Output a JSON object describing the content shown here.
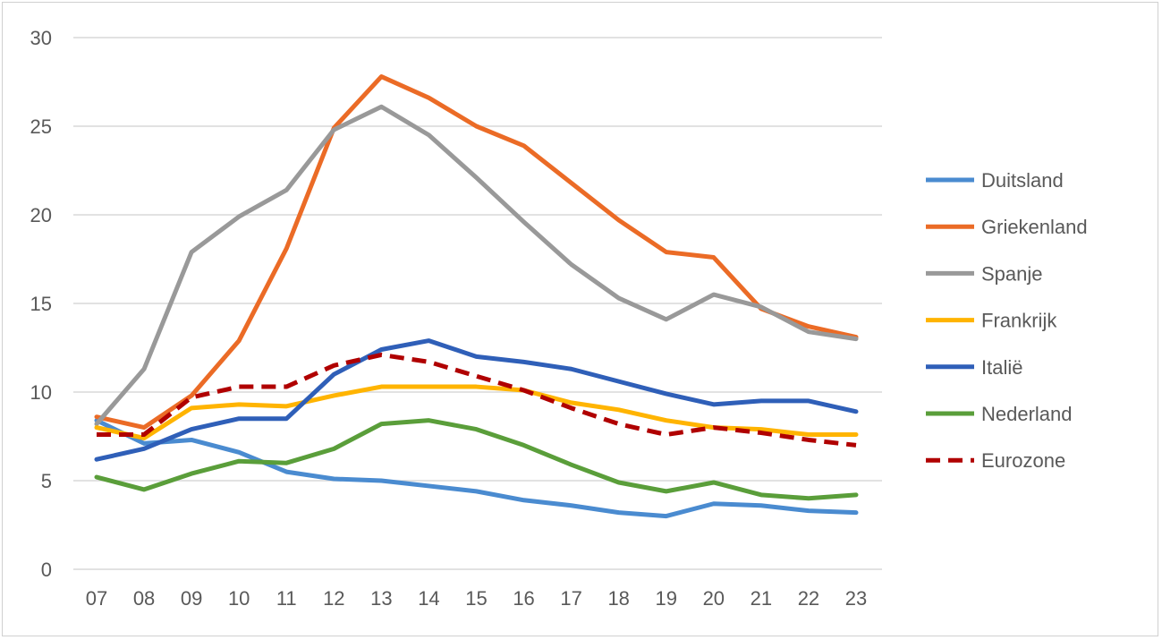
{
  "chart_data": {
    "type": "line",
    "title": "",
    "xlabel": "",
    "ylabel": "",
    "categories": [
      "07",
      "08",
      "09",
      "10",
      "11",
      "12",
      "13",
      "14",
      "15",
      "16",
      "17",
      "18",
      "19",
      "20",
      "21",
      "22",
      "23"
    ],
    "ylim": [
      0,
      30
    ],
    "yticks": [
      "0",
      "5",
      "10",
      "15",
      "20",
      "25",
      "30"
    ],
    "grid": true,
    "legend_position": "right",
    "series": [
      {
        "name": "Duitsland",
        "color": "#4a8bd0",
        "dashed": false,
        "values": [
          8.4,
          7.1,
          7.3,
          6.6,
          5.5,
          5.1,
          5.0,
          4.7,
          4.4,
          3.9,
          3.6,
          3.2,
          3.0,
          3.7,
          3.6,
          3.3,
          3.2
        ]
      },
      {
        "name": "Griekenland",
        "color": "#eb6b26",
        "dashed": false,
        "values": [
          8.6,
          8.0,
          9.8,
          12.9,
          18.1,
          24.9,
          27.8,
          26.6,
          25.0,
          23.9,
          21.8,
          19.7,
          17.9,
          17.6,
          14.7,
          13.7,
          13.1
        ]
      },
      {
        "name": "Spanje",
        "color": "#999999",
        "dashed": false,
        "values": [
          8.2,
          11.3,
          17.9,
          19.9,
          21.4,
          24.8,
          26.1,
          24.5,
          22.1,
          19.6,
          17.2,
          15.3,
          14.1,
          15.5,
          14.8,
          13.4,
          13.0
        ]
      },
      {
        "name": "Frankrijk",
        "color": "#ffb400",
        "dashed": false,
        "values": [
          8.0,
          7.4,
          9.1,
          9.3,
          9.2,
          9.8,
          10.3,
          10.3,
          10.3,
          10.1,
          9.4,
          9.0,
          8.4,
          8.0,
          7.9,
          7.6,
          7.6
        ]
      },
      {
        "name": "Italië",
        "color": "#2f5fb8",
        "dashed": false,
        "values": [
          6.2,
          6.8,
          7.9,
          8.5,
          8.5,
          11.0,
          12.4,
          12.9,
          12.0,
          11.7,
          11.3,
          10.6,
          9.9,
          9.3,
          9.5,
          9.5,
          8.9
        ]
      },
      {
        "name": "Nederland",
        "color": "#5a9e3a",
        "dashed": false,
        "values": [
          5.2,
          4.5,
          5.4,
          6.1,
          6.0,
          6.8,
          8.2,
          8.4,
          7.9,
          7.0,
          5.9,
          4.9,
          4.4,
          4.9,
          4.2,
          4.0,
          4.2
        ]
      },
      {
        "name": "Eurozone",
        "color": "#b00000",
        "dashed": true,
        "values": [
          7.6,
          7.6,
          9.7,
          10.3,
          10.3,
          11.5,
          12.1,
          11.7,
          10.9,
          10.1,
          9.1,
          8.2,
          7.6,
          8.0,
          7.7,
          7.3,
          7.0
        ]
      }
    ]
  }
}
